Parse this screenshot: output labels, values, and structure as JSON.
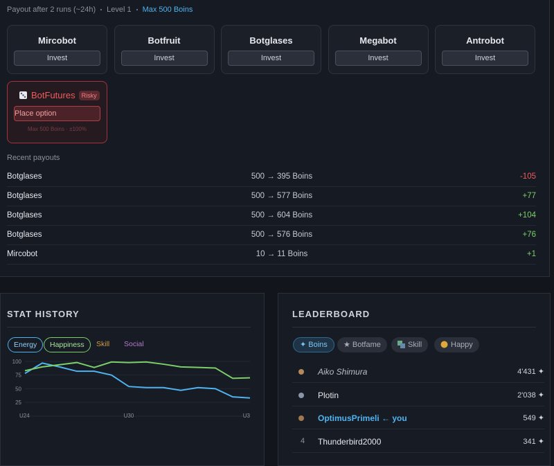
{
  "header": {
    "meta": [
      "Payout after 2 runs (~24h)",
      "Level 1",
      "Max 500 Boins"
    ]
  },
  "bots": [
    {
      "name": "Mircobot",
      "button": "Invest"
    },
    {
      "name": "Botfruit",
      "button": "Invest"
    },
    {
      "name": "Botglases",
      "button": "Invest"
    },
    {
      "name": "Megabot",
      "button": "Invest"
    },
    {
      "name": "Antrobot",
      "button": "Invest"
    }
  ],
  "futures": {
    "name": "BotFutures",
    "badge": "Risky",
    "button": "Place option",
    "note": "Max 500 Boins · ±100%"
  },
  "payouts": {
    "title": "Recent payouts",
    "rows": [
      [
        "Botglases",
        "500 → 395 Boins",
        "-105"
      ],
      [
        "Botglases",
        "500 → 577 Boins",
        "+77"
      ],
      [
        "Botglases",
        "500 → 604 Boins",
        "+104"
      ],
      [
        "Botglases",
        "500 → 576 Boins",
        "+76"
      ],
      [
        "Mircobot",
        "10 → 11 Boins",
        "+1"
      ]
    ]
  },
  "stat_history": {
    "type": "line",
    "title": "STAT HISTORY",
    "legend": [
      "Energy",
      "Happiness",
      "Skill",
      "Social"
    ],
    "categories": [
      "U24",
      null,
      null,
      null,
      null,
      null,
      "U30",
      null,
      null,
      null,
      null,
      null,
      null,
      "U3"
    ],
    "series": [
      {
        "name": "Energy",
        "color": "#4fb3f0",
        "values": [
          78,
          97,
          90,
          82,
          82,
          75,
          54,
          52,
          52,
          47,
          52,
          50,
          35,
          33
        ]
      },
      {
        "name": "Happiness",
        "color": "#7ccf6a",
        "values": [
          83,
          90,
          94,
          98,
          89,
          99,
          98,
          99,
          95,
          90,
          89,
          88,
          69,
          70
        ]
      }
    ],
    "ylim": [
      25,
      100
    ],
    "yticks": [
      100,
      75,
      50,
      25
    ],
    "grid": true
  },
  "leaderboard": {
    "title": "LEADERBOARD",
    "tabs": [
      "✦ Boins",
      "★ Botfame",
      "Skill",
      "Happy"
    ],
    "rows": [
      {
        "rank": null,
        "name": "Aiko Shimura",
        "value": "4'431 ✦"
      },
      {
        "rank": null,
        "name": "Plotin",
        "value": "2'038 ✦"
      },
      {
        "rank": null,
        "name": "OptimusPrimeli ← you",
        "value": "549 ✦"
      },
      {
        "rank": "4",
        "name": "Thunderbird2000",
        "value": "341 ✦"
      }
    ]
  }
}
